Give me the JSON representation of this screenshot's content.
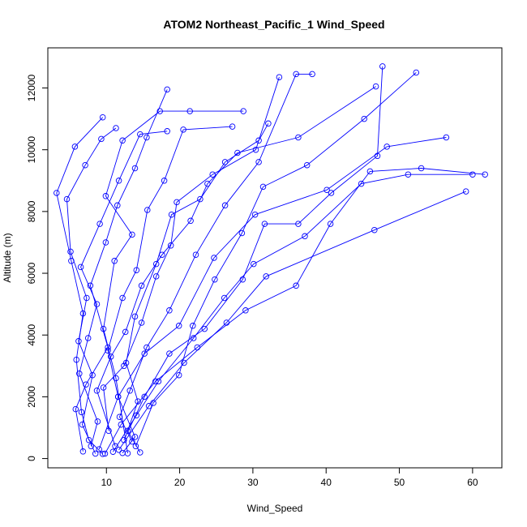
{
  "chart_data": {
    "type": "line",
    "title": "ATOM2 Northeast_Pacific_1 Wind_Speed",
    "xlabel": "Wind_Speed",
    "ylabel": "Altitude (m)",
    "xlim": [
      2.0,
      64.0
    ],
    "ylim": [
      -300,
      13300
    ],
    "x_ticks": [
      10,
      20,
      30,
      40,
      50,
      60
    ],
    "y_ticks": [
      0,
      2000,
      4000,
      6000,
      8000,
      10000,
      12000
    ],
    "grid": false,
    "legend": "none",
    "series_color": "#0000ff",
    "series": [
      {
        "points": [
          [
            9.5,
            150
          ],
          [
            7.6,
            600
          ],
          [
            6.6,
            1500
          ],
          [
            5.9,
            3200
          ],
          [
            6.8,
            4700
          ],
          [
            5.2,
            6400
          ],
          [
            3.2,
            8600
          ],
          [
            5.7,
            10100
          ],
          [
            9.5,
            11050
          ]
        ]
      },
      {
        "points": [
          [
            12.2,
            180
          ],
          [
            13.9,
            700
          ],
          [
            11.6,
            2000
          ],
          [
            10.2,
            3500
          ],
          [
            12.2,
            5200
          ],
          [
            14.1,
            6100
          ],
          [
            15.6,
            8050
          ],
          [
            17.9,
            9000
          ],
          [
            20.5,
            10650
          ],
          [
            27.2,
            10750
          ]
        ]
      },
      {
        "points": [
          [
            14.6,
            200
          ],
          [
            12.9,
            900
          ],
          [
            14.3,
            1850
          ],
          [
            12.7,
            3100
          ],
          [
            13.9,
            4600
          ],
          [
            16.8,
            6300
          ],
          [
            18.9,
            7900
          ],
          [
            22.8,
            8400
          ],
          [
            26.2,
            9600
          ],
          [
            30.8,
            10300
          ],
          [
            32.1,
            10850
          ]
        ]
      },
      {
        "points": [
          [
            8.5,
            160
          ],
          [
            6.7,
            1100
          ],
          [
            8.1,
            2700
          ],
          [
            6.2,
            3800
          ],
          [
            7.3,
            5200
          ],
          [
            5.1,
            6700
          ],
          [
            4.6,
            8400
          ],
          [
            7.1,
            9500
          ],
          [
            9.3,
            10350
          ],
          [
            11.3,
            10700
          ]
        ]
      },
      {
        "points": [
          [
            6.8,
            230
          ],
          [
            5.8,
            1600
          ],
          [
            7.2,
            2400
          ],
          [
            10.2,
            3600
          ],
          [
            7.8,
            5600
          ],
          [
            9.9,
            7000
          ],
          [
            11.5,
            8200
          ],
          [
            13.9,
            9400
          ],
          [
            15.5,
            10400
          ],
          [
            18.3,
            11950
          ]
        ]
      },
      {
        "points": [
          [
            12.9,
            170
          ],
          [
            11.3,
            2600
          ],
          [
            9.6,
            4200
          ],
          [
            11.1,
            6400
          ],
          [
            13.5,
            7250
          ],
          [
            9.9,
            8500
          ],
          [
            12.2,
            10300
          ],
          [
            17.3,
            11250
          ],
          [
            21.4,
            11250
          ],
          [
            28.7,
            11250
          ]
        ]
      },
      {
        "points": [
          [
            7.9,
            400
          ],
          [
            8.8,
            1200
          ],
          [
            6.3,
            2750
          ],
          [
            7.5,
            3900
          ],
          [
            8.7,
            5000
          ],
          [
            6.5,
            6200
          ],
          [
            9.1,
            7600
          ],
          [
            11.7,
            9000
          ],
          [
            14.6,
            10500
          ],
          [
            18.3,
            10600
          ]
        ]
      },
      {
        "points": [
          [
            10.3,
            900
          ],
          [
            9.6,
            2300
          ],
          [
            12.4,
            3000
          ],
          [
            14.8,
            4400
          ],
          [
            16.8,
            5900
          ],
          [
            18.8,
            6900
          ],
          [
            19.6,
            8300
          ],
          [
            24.5,
            9200
          ],
          [
            30.4,
            10000
          ],
          [
            33.6,
            12350
          ]
        ]
      },
      {
        "points": [
          [
            13.5,
            550
          ],
          [
            11.8,
            1350
          ],
          [
            13.2,
            2200
          ],
          [
            15.5,
            3600
          ],
          [
            18.6,
            4800
          ],
          [
            22.2,
            6600
          ],
          [
            26.2,
            8200
          ],
          [
            30.8,
            9600
          ],
          [
            35.9,
            12450
          ],
          [
            38.1,
            12450
          ]
        ]
      },
      {
        "points": [
          [
            11.2,
            400
          ],
          [
            8.7,
            2200
          ],
          [
            10.6,
            3300
          ],
          [
            12.6,
            4100
          ],
          [
            14.8,
            5600
          ],
          [
            17.6,
            6600
          ],
          [
            21.5,
            7700
          ],
          [
            23.8,
            8900
          ],
          [
            27.9,
            9900
          ],
          [
            36.2,
            10400
          ],
          [
            46.8,
            12050
          ]
        ]
      },
      {
        "points": [
          [
            14.0,
            400
          ],
          [
            16.4,
            1800
          ],
          [
            19.9,
            2700
          ],
          [
            21.8,
            4300
          ],
          [
            24.8,
            5800
          ],
          [
            28.5,
            7300
          ],
          [
            31.4,
            8800
          ],
          [
            37.4,
            9500
          ],
          [
            45.2,
            11000
          ],
          [
            52.3,
            12500
          ]
        ]
      },
      {
        "points": [
          [
            12.4,
            600
          ],
          [
            15.2,
            2000
          ],
          [
            18.6,
            3400
          ],
          [
            23.4,
            4200
          ],
          [
            28.6,
            5800
          ],
          [
            31.6,
            7600
          ],
          [
            36.2,
            7600
          ],
          [
            40.7,
            8600
          ],
          [
            47.0,
            9800
          ],
          [
            47.7,
            12700
          ]
        ]
      },
      {
        "points": [
          [
            10.9,
            220
          ],
          [
            14.1,
            1400
          ],
          [
            17.1,
            2500
          ],
          [
            21.9,
            3900
          ],
          [
            26.1,
            5200
          ],
          [
            30.1,
            6300
          ],
          [
            37.1,
            7200
          ],
          [
            44.8,
            8900
          ],
          [
            51.2,
            9200
          ],
          [
            60.0,
            9200
          ]
        ]
      },
      {
        "points": [
          [
            9.0,
            300
          ],
          [
            11.6,
            2000
          ],
          [
            15.2,
            3400
          ],
          [
            19.9,
            4300
          ],
          [
            24.7,
            6500
          ],
          [
            30.3,
            7900
          ],
          [
            40.1,
            8700
          ],
          [
            48.3,
            10100
          ],
          [
            56.4,
            10400
          ]
        ]
      },
      {
        "points": [
          [
            9.8,
            160
          ],
          [
            12.0,
            1100
          ],
          [
            16.7,
            2500
          ],
          [
            22.4,
            3600
          ],
          [
            29.0,
            4800
          ],
          [
            35.9,
            5600
          ],
          [
            40.6,
            7600
          ],
          [
            46.0,
            9300
          ],
          [
            53.0,
            9400
          ],
          [
            61.7,
            9200
          ]
        ]
      },
      {
        "points": [
          [
            11.7,
            280
          ],
          [
            15.8,
            1700
          ],
          [
            20.6,
            3100
          ],
          [
            26.4,
            4400
          ],
          [
            31.8,
            5900
          ],
          [
            46.6,
            7400
          ],
          [
            59.1,
            8650
          ]
        ]
      }
    ]
  }
}
